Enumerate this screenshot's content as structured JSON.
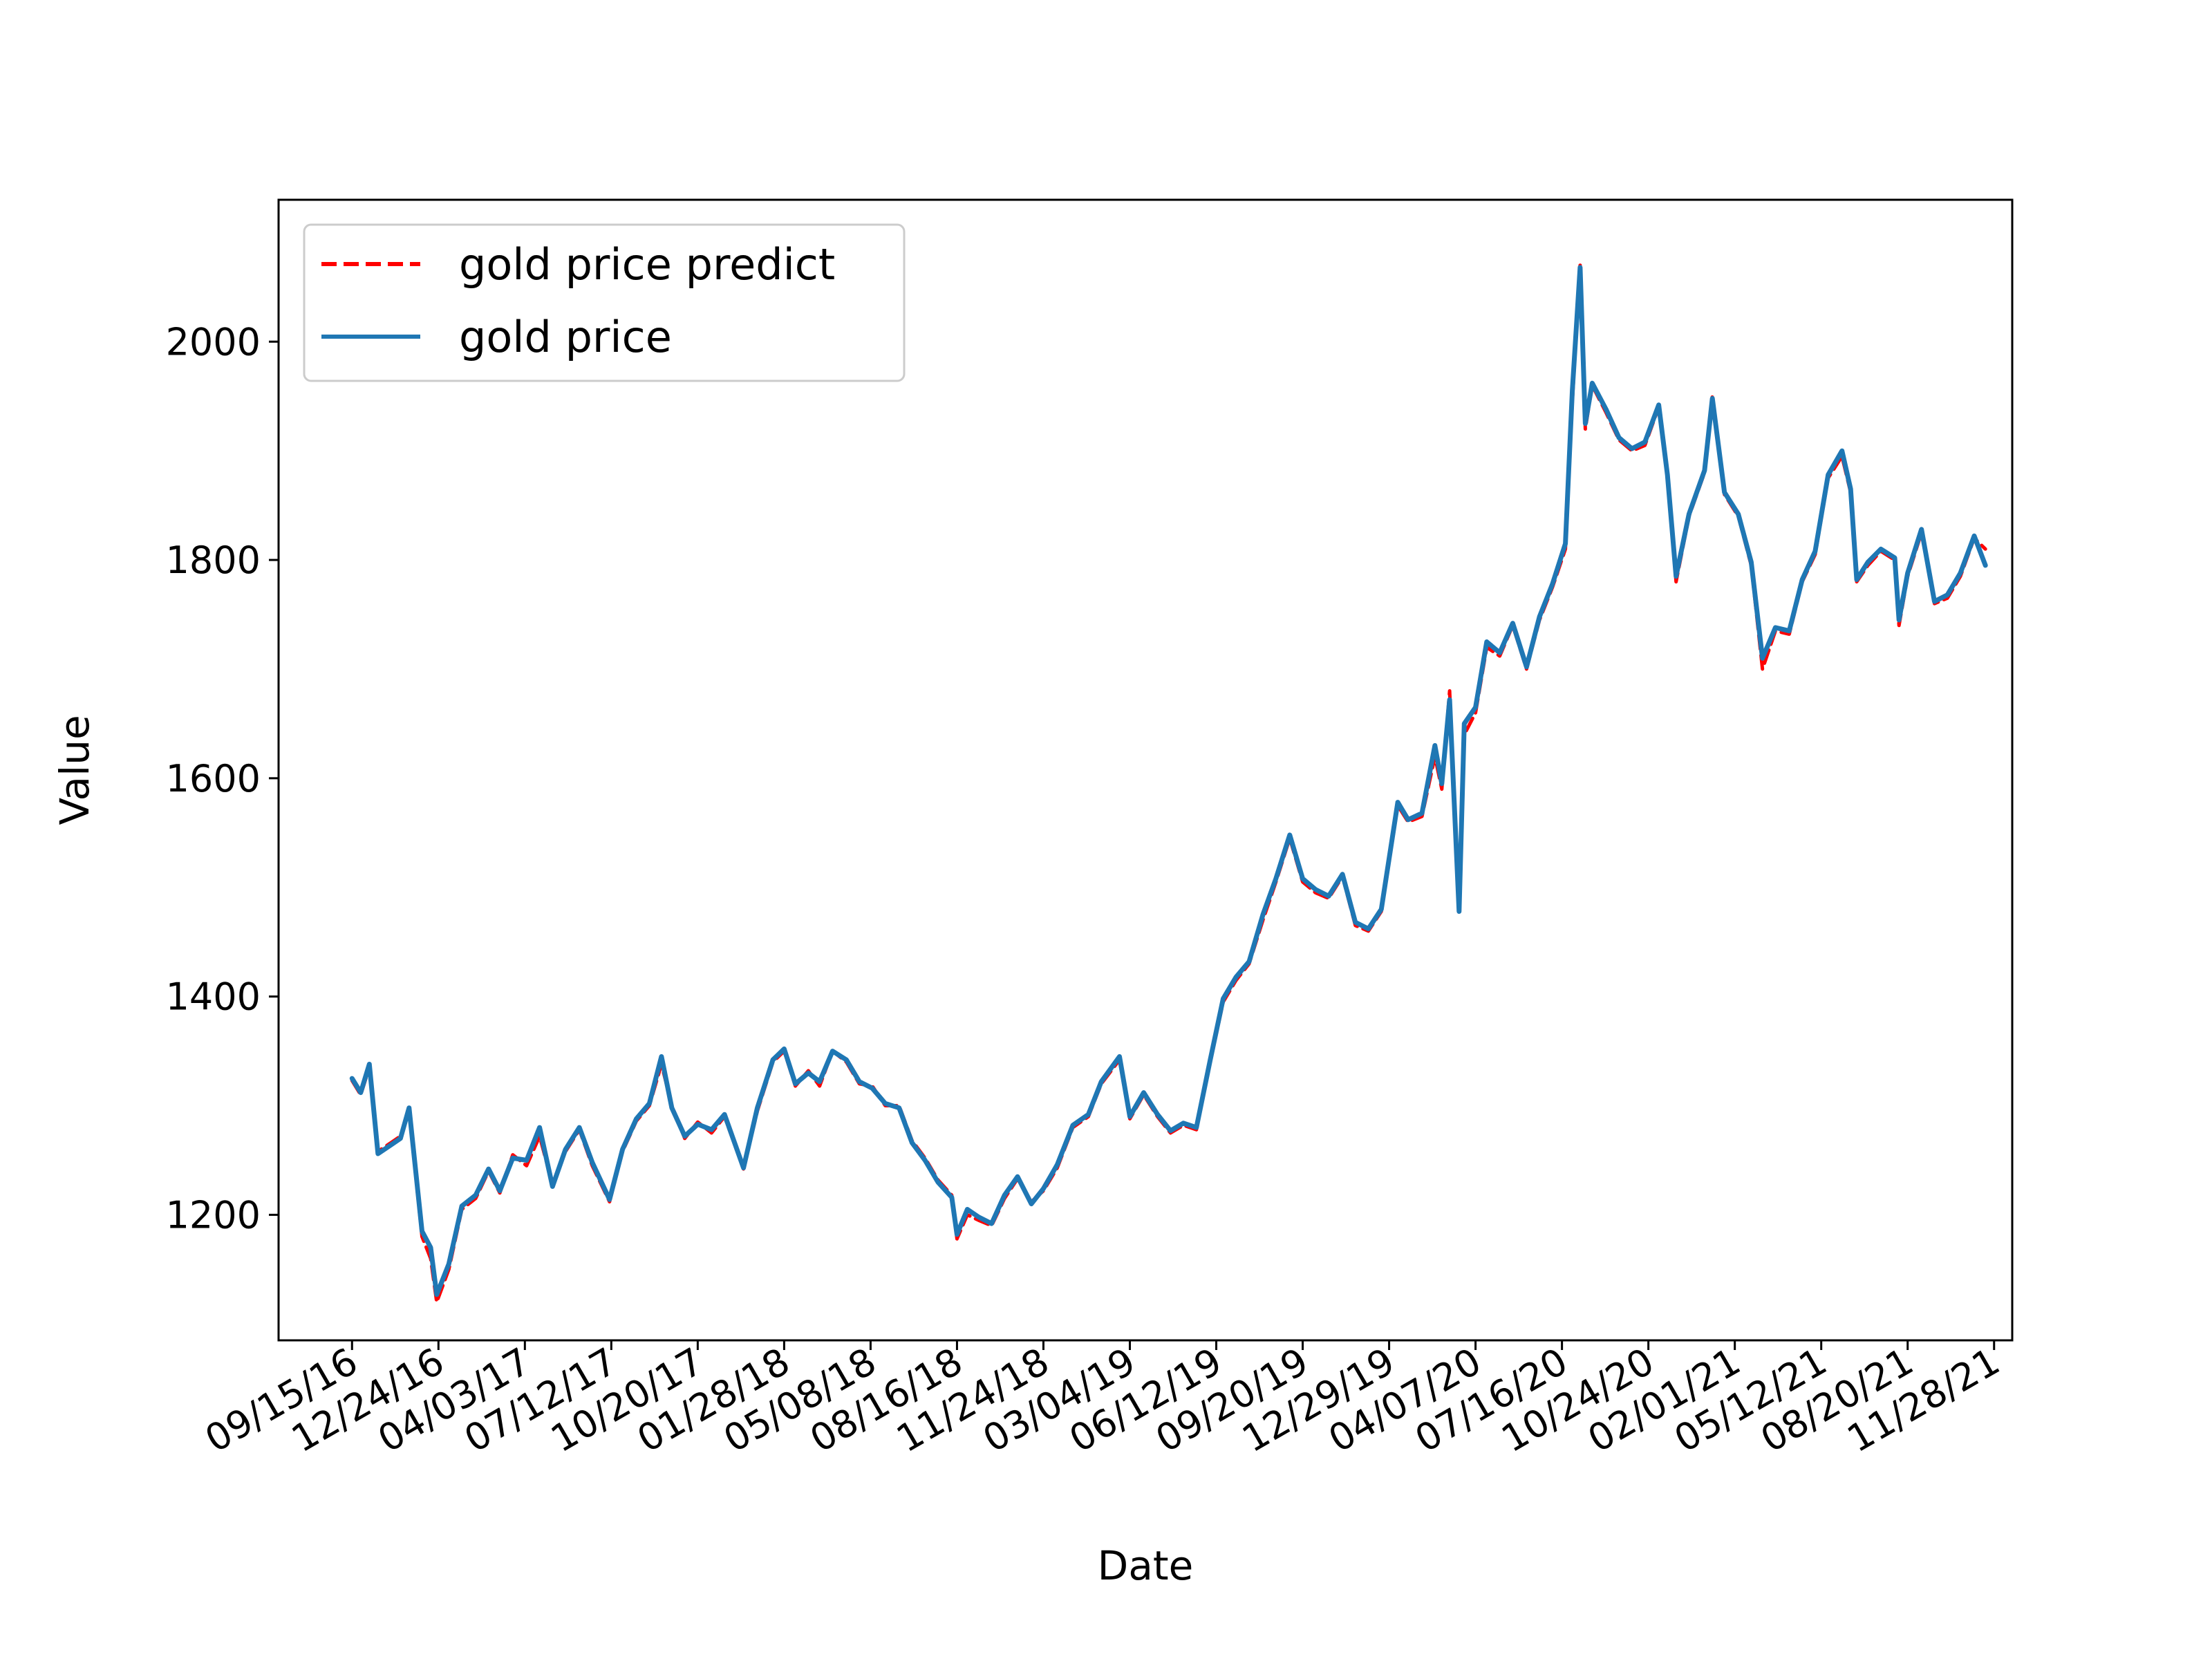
{
  "chart_data": {
    "type": "line",
    "title": "",
    "xlabel": "Date",
    "ylabel": "Value",
    "x_ticks": [
      "09/15/16",
      "12/24/16",
      "04/03/17",
      "07/12/17",
      "10/20/17",
      "01/28/18",
      "05/08/18",
      "08/16/18",
      "11/24/18",
      "03/04/19",
      "06/12/19",
      "09/20/19",
      "12/29/19",
      "04/07/20",
      "07/16/20",
      "10/24/20",
      "02/01/21",
      "05/12/21",
      "08/20/21",
      "11/28/21"
    ],
    "x_range": [
      "2016-06-22",
      "2021-12-19"
    ],
    "y_ticks": [
      1200,
      1400,
      1600,
      1800,
      2000
    ],
    "ylim": [
      1085,
      2130
    ],
    "grid": false,
    "legend_position": "upper-left",
    "colors": {
      "predict": "#ff0000",
      "actual": "#1f77b4"
    },
    "series": [
      {
        "name": "gold price predict",
        "line_style": "dashed",
        "points": [
          [
            "2016-09-15",
            1323
          ],
          [
            "2016-09-25",
            1310
          ],
          [
            "2016-10-05",
            1335
          ],
          [
            "2016-10-15",
            1258
          ],
          [
            "2016-10-30",
            1266
          ],
          [
            "2016-11-10",
            1272
          ],
          [
            "2016-11-20",
            1295
          ],
          [
            "2016-12-05",
            1180
          ],
          [
            "2016-12-15",
            1160
          ],
          [
            "2016-12-22",
            1120
          ],
          [
            "2017-01-05",
            1150
          ],
          [
            "2017-01-20",
            1205
          ],
          [
            "2017-02-05",
            1215
          ],
          [
            "2017-02-20",
            1240
          ],
          [
            "2017-03-05",
            1220
          ],
          [
            "2017-03-20",
            1255
          ],
          [
            "2017-04-05",
            1245
          ],
          [
            "2017-04-20",
            1272
          ],
          [
            "2017-05-05",
            1228
          ],
          [
            "2017-05-20",
            1258
          ],
          [
            "2017-06-05",
            1278
          ],
          [
            "2017-06-20",
            1245
          ],
          [
            "2017-07-10",
            1212
          ],
          [
            "2017-07-25",
            1258
          ],
          [
            "2017-08-10",
            1286
          ],
          [
            "2017-08-25",
            1300
          ],
          [
            "2017-09-08",
            1338
          ],
          [
            "2017-09-20",
            1300
          ],
          [
            "2017-10-05",
            1270
          ],
          [
            "2017-10-20",
            1285
          ],
          [
            "2017-11-05",
            1275
          ],
          [
            "2017-11-20",
            1290
          ],
          [
            "2017-12-12",
            1242
          ],
          [
            "2017-12-28",
            1295
          ],
          [
            "2018-01-15",
            1340
          ],
          [
            "2018-01-28",
            1350
          ],
          [
            "2018-02-10",
            1318
          ],
          [
            "2018-02-25",
            1332
          ],
          [
            "2018-03-10",
            1318
          ],
          [
            "2018-03-25",
            1350
          ],
          [
            "2018-04-10",
            1340
          ],
          [
            "2018-04-25",
            1320
          ],
          [
            "2018-05-10",
            1318
          ],
          [
            "2018-05-25",
            1300
          ],
          [
            "2018-06-10",
            1300
          ],
          [
            "2018-06-25",
            1268
          ],
          [
            "2018-07-10",
            1252
          ],
          [
            "2018-07-25",
            1232
          ],
          [
            "2018-08-10",
            1218
          ],
          [
            "2018-08-16",
            1178
          ],
          [
            "2018-08-28",
            1200
          ],
          [
            "2018-09-10",
            1195
          ],
          [
            "2018-09-25",
            1190
          ],
          [
            "2018-10-10",
            1215
          ],
          [
            "2018-10-25",
            1233
          ],
          [
            "2018-11-10",
            1212
          ],
          [
            "2018-11-24",
            1222
          ],
          [
            "2018-12-10",
            1243
          ],
          [
            "2018-12-28",
            1280
          ],
          [
            "2019-01-15",
            1290
          ],
          [
            "2019-01-30",
            1320
          ],
          [
            "2019-02-20",
            1342
          ],
          [
            "2019-03-04",
            1288
          ],
          [
            "2019-03-20",
            1310
          ],
          [
            "2019-04-05",
            1290
          ],
          [
            "2019-04-20",
            1275
          ],
          [
            "2019-05-05",
            1282
          ],
          [
            "2019-05-20",
            1278
          ],
          [
            "2019-06-05",
            1340
          ],
          [
            "2019-06-20",
            1395
          ],
          [
            "2019-07-05",
            1415
          ],
          [
            "2019-07-20",
            1430
          ],
          [
            "2019-08-05",
            1470
          ],
          [
            "2019-08-20",
            1505
          ],
          [
            "2019-09-05",
            1545
          ],
          [
            "2019-09-20",
            1505
          ],
          [
            "2019-10-05",
            1495
          ],
          [
            "2019-10-20",
            1490
          ],
          [
            "2019-11-05",
            1510
          ],
          [
            "2019-11-20",
            1465
          ],
          [
            "2019-12-05",
            1460
          ],
          [
            "2019-12-20",
            1478
          ],
          [
            "2020-01-08",
            1575
          ],
          [
            "2020-01-20",
            1560
          ],
          [
            "2020-02-05",
            1565
          ],
          [
            "2020-02-20",
            1620
          ],
          [
            "2020-02-28",
            1590
          ],
          [
            "2020-03-08",
            1680
          ],
          [
            "2020-03-19",
            1480
          ],
          [
            "2020-03-25",
            1640
          ],
          [
            "2020-04-07",
            1660
          ],
          [
            "2020-04-20",
            1720
          ],
          [
            "2020-05-05",
            1712
          ],
          [
            "2020-05-20",
            1740
          ],
          [
            "2020-06-05",
            1700
          ],
          [
            "2020-06-20",
            1745
          ],
          [
            "2020-07-05",
            1775
          ],
          [
            "2020-07-20",
            1810
          ],
          [
            "2020-07-28",
            1945
          ],
          [
            "2020-08-06",
            2070
          ],
          [
            "2020-08-12",
            1920
          ],
          [
            "2020-08-20",
            1960
          ],
          [
            "2020-09-05",
            1935
          ],
          [
            "2020-09-20",
            1910
          ],
          [
            "2020-10-05",
            1900
          ],
          [
            "2020-10-20",
            1905
          ],
          [
            "2020-11-05",
            1940
          ],
          [
            "2020-11-15",
            1875
          ],
          [
            "2020-11-25",
            1780
          ],
          [
            "2020-12-10",
            1840
          ],
          [
            "2020-12-28",
            1880
          ],
          [
            "2021-01-06",
            1950
          ],
          [
            "2021-01-20",
            1860
          ],
          [
            "2021-02-05",
            1840
          ],
          [
            "2021-02-20",
            1795
          ],
          [
            "2021-03-05",
            1700
          ],
          [
            "2021-03-20",
            1735
          ],
          [
            "2021-04-05",
            1732
          ],
          [
            "2021-04-20",
            1780
          ],
          [
            "2021-05-05",
            1805
          ],
          [
            "2021-05-20",
            1875
          ],
          [
            "2021-06-05",
            1895
          ],
          [
            "2021-06-15",
            1862
          ],
          [
            "2021-06-22",
            1780
          ],
          [
            "2021-07-05",
            1795
          ],
          [
            "2021-07-20",
            1808
          ],
          [
            "2021-08-05",
            1800
          ],
          [
            "2021-08-10",
            1740
          ],
          [
            "2021-08-20",
            1785
          ],
          [
            "2021-09-05",
            1825
          ],
          [
            "2021-09-20",
            1760
          ],
          [
            "2021-10-05",
            1765
          ],
          [
            "2021-10-20",
            1785
          ],
          [
            "2021-11-05",
            1820
          ],
          [
            "2021-11-18",
            1810
          ]
        ]
      },
      {
        "name": "gold price",
        "line_style": "solid",
        "points": [
          [
            "2016-09-15",
            1325
          ],
          [
            "2016-09-25",
            1312
          ],
          [
            "2016-10-05",
            1338
          ],
          [
            "2016-10-15",
            1256
          ],
          [
            "2016-10-30",
            1264
          ],
          [
            "2016-11-10",
            1270
          ],
          [
            "2016-11-20",
            1298
          ],
          [
            "2016-12-05",
            1185
          ],
          [
            "2016-12-15",
            1170
          ],
          [
            "2016-12-22",
            1127
          ],
          [
            "2017-01-05",
            1155
          ],
          [
            "2017-01-20",
            1208
          ],
          [
            "2017-02-05",
            1218
          ],
          [
            "2017-02-20",
            1242
          ],
          [
            "2017-03-05",
            1222
          ],
          [
            "2017-03-20",
            1252
          ],
          [
            "2017-04-05",
            1250
          ],
          [
            "2017-04-20",
            1280
          ],
          [
            "2017-05-05",
            1226
          ],
          [
            "2017-05-20",
            1260
          ],
          [
            "2017-06-05",
            1280
          ],
          [
            "2017-06-20",
            1248
          ],
          [
            "2017-07-10",
            1214
          ],
          [
            "2017-07-25",
            1260
          ],
          [
            "2017-08-10",
            1288
          ],
          [
            "2017-08-25",
            1302
          ],
          [
            "2017-09-08",
            1345
          ],
          [
            "2017-09-20",
            1298
          ],
          [
            "2017-10-05",
            1272
          ],
          [
            "2017-10-20",
            1283
          ],
          [
            "2017-11-05",
            1278
          ],
          [
            "2017-11-20",
            1292
          ],
          [
            "2017-12-12",
            1243
          ],
          [
            "2017-12-28",
            1298
          ],
          [
            "2018-01-15",
            1342
          ],
          [
            "2018-01-28",
            1352
          ],
          [
            "2018-02-10",
            1320
          ],
          [
            "2018-02-25",
            1330
          ],
          [
            "2018-03-10",
            1322
          ],
          [
            "2018-03-25",
            1350
          ],
          [
            "2018-04-10",
            1342
          ],
          [
            "2018-04-25",
            1322
          ],
          [
            "2018-05-10",
            1316
          ],
          [
            "2018-05-25",
            1302
          ],
          [
            "2018-06-10",
            1298
          ],
          [
            "2018-06-25",
            1266
          ],
          [
            "2018-07-10",
            1250
          ],
          [
            "2018-07-25",
            1230
          ],
          [
            "2018-08-10",
            1216
          ],
          [
            "2018-08-16",
            1182
          ],
          [
            "2018-08-28",
            1205
          ],
          [
            "2018-09-10",
            1198
          ],
          [
            "2018-09-25",
            1192
          ],
          [
            "2018-10-10",
            1218
          ],
          [
            "2018-10-25",
            1235
          ],
          [
            "2018-11-10",
            1210
          ],
          [
            "2018-11-24",
            1224
          ],
          [
            "2018-12-10",
            1246
          ],
          [
            "2018-12-28",
            1282
          ],
          [
            "2019-01-15",
            1292
          ],
          [
            "2019-01-30",
            1322
          ],
          [
            "2019-02-20",
            1345
          ],
          [
            "2019-03-04",
            1290
          ],
          [
            "2019-03-20",
            1312
          ],
          [
            "2019-04-05",
            1292
          ],
          [
            "2019-04-20",
            1277
          ],
          [
            "2019-05-05",
            1284
          ],
          [
            "2019-05-20",
            1280
          ],
          [
            "2019-06-05",
            1342
          ],
          [
            "2019-06-20",
            1398
          ],
          [
            "2019-07-05",
            1418
          ],
          [
            "2019-07-20",
            1432
          ],
          [
            "2019-08-05",
            1475
          ],
          [
            "2019-08-20",
            1508
          ],
          [
            "2019-09-05",
            1548
          ],
          [
            "2019-09-20",
            1508
          ],
          [
            "2019-10-05",
            1498
          ],
          [
            "2019-10-20",
            1492
          ],
          [
            "2019-11-05",
            1512
          ],
          [
            "2019-11-20",
            1468
          ],
          [
            "2019-12-05",
            1462
          ],
          [
            "2019-12-20",
            1480
          ],
          [
            "2020-01-08",
            1578
          ],
          [
            "2020-01-20",
            1562
          ],
          [
            "2020-02-05",
            1568
          ],
          [
            "2020-02-20",
            1630
          ],
          [
            "2020-02-28",
            1595
          ],
          [
            "2020-03-08",
            1672
          ],
          [
            "2020-03-19",
            1478
          ],
          [
            "2020-03-25",
            1650
          ],
          [
            "2020-04-07",
            1665
          ],
          [
            "2020-04-20",
            1725
          ],
          [
            "2020-05-05",
            1715
          ],
          [
            "2020-05-20",
            1742
          ],
          [
            "2020-06-05",
            1702
          ],
          [
            "2020-06-20",
            1748
          ],
          [
            "2020-07-05",
            1778
          ],
          [
            "2020-07-20",
            1815
          ],
          [
            "2020-07-28",
            1955
          ],
          [
            "2020-08-06",
            2068
          ],
          [
            "2020-08-12",
            1925
          ],
          [
            "2020-08-20",
            1962
          ],
          [
            "2020-09-05",
            1938
          ],
          [
            "2020-09-20",
            1912
          ],
          [
            "2020-10-05",
            1902
          ],
          [
            "2020-10-20",
            1908
          ],
          [
            "2020-11-05",
            1942
          ],
          [
            "2020-11-15",
            1878
          ],
          [
            "2020-11-25",
            1785
          ],
          [
            "2020-12-10",
            1842
          ],
          [
            "2020-12-28",
            1882
          ],
          [
            "2021-01-06",
            1948
          ],
          [
            "2021-01-20",
            1862
          ],
          [
            "2021-02-05",
            1842
          ],
          [
            "2021-02-20",
            1798
          ],
          [
            "2021-03-05",
            1710
          ],
          [
            "2021-03-20",
            1738
          ],
          [
            "2021-04-05",
            1735
          ],
          [
            "2021-04-20",
            1782
          ],
          [
            "2021-05-05",
            1808
          ],
          [
            "2021-05-20",
            1878
          ],
          [
            "2021-06-05",
            1900
          ],
          [
            "2021-06-15",
            1865
          ],
          [
            "2021-06-22",
            1782
          ],
          [
            "2021-07-05",
            1798
          ],
          [
            "2021-07-20",
            1810
          ],
          [
            "2021-08-05",
            1802
          ],
          [
            "2021-08-10",
            1745
          ],
          [
            "2021-08-20",
            1788
          ],
          [
            "2021-09-05",
            1828
          ],
          [
            "2021-09-20",
            1762
          ],
          [
            "2021-10-05",
            1768
          ],
          [
            "2021-10-20",
            1788
          ],
          [
            "2021-11-05",
            1822
          ],
          [
            "2021-11-18",
            1795
          ]
        ]
      }
    ]
  }
}
